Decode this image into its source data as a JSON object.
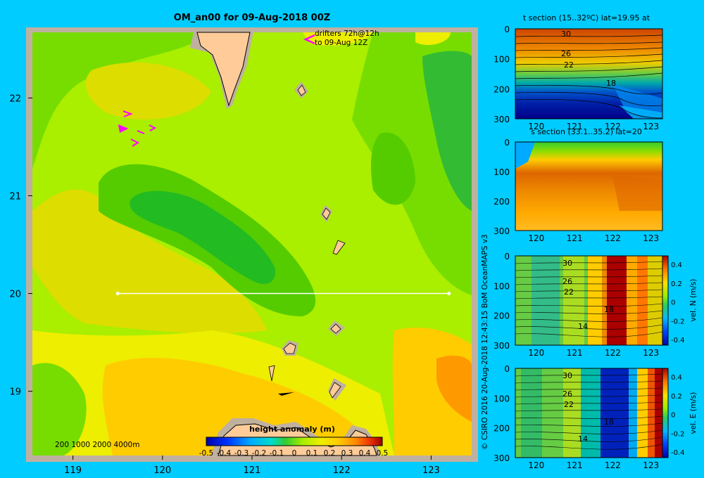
{
  "colors": {
    "background": "#00ccff",
    "land": "#ffcc99",
    "shelf": "#c0b0a0",
    "drifter": "#ff00ff",
    "section_line": "#ffffff"
  },
  "map": {
    "title": "OM_an00 for 09-Aug-2018 00Z",
    "drifter_legend_line1": "drifters 72h@12h",
    "drifter_legend_line2": "to 09-Aug 12Z",
    "depth_legend": "200  1000  2000  4000m",
    "lat_ticks": [
      "22",
      "21",
      "20",
      "19"
    ],
    "lon_ticks": [
      "119",
      "120",
      "121",
      "122",
      "123"
    ],
    "colorbar_title": "height anomaly (m)",
    "colorbar_ticks": [
      "-0.5",
      "-0.4",
      "-0.3",
      "-0.2",
      "-0.1",
      "0",
      "0.1",
      "0.2",
      "0.3",
      "0.4",
      "0.5"
    ],
    "section_lat": 20,
    "section_lon": [
      119.5,
      123.2
    ]
  },
  "credit": "© CSIRO 2016   20-Aug-2018 12:43:15 BoM OceanMAPS v3",
  "panels": [
    {
      "title": "t section (15..32ºC) lat=19.95 at",
      "depth_ticks": [
        "0",
        "100",
        "200",
        "300"
      ],
      "lon_ticks": [
        "120",
        "121",
        "122",
        "123"
      ],
      "contour_labels": [
        "30",
        "26",
        "22",
        "18"
      ]
    },
    {
      "title": "s section (33.1..35.2) lat=20",
      "depth_ticks": [
        "0",
        "100",
        "200",
        "300"
      ],
      "lon_ticks": [
        "120",
        "121",
        "122",
        "123"
      ]
    },
    {
      "depth_ticks": [
        "0",
        "100",
        "200",
        "300"
      ],
      "lon_ticks": [
        "120",
        "121",
        "122",
        "123"
      ],
      "contour_labels": [
        "30",
        "26",
        "22",
        "18",
        "14"
      ],
      "cbar_label": "vel. N (m/s)",
      "cbar_ticks": [
        "0.4",
        "0.2",
        "0",
        "-0.2",
        "-0.4"
      ]
    },
    {
      "depth_ticks": [
        "0",
        "100",
        "200",
        "300"
      ],
      "lon_ticks": [
        "120",
        "121",
        "122",
        "123"
      ],
      "contour_labels": [
        "30",
        "26",
        "22",
        "18",
        "14"
      ],
      "cbar_label": "vel. E (m/s)",
      "cbar_ticks": [
        "0.4",
        "0.2",
        "0",
        "-0.2",
        "-0.4"
      ]
    }
  ]
}
